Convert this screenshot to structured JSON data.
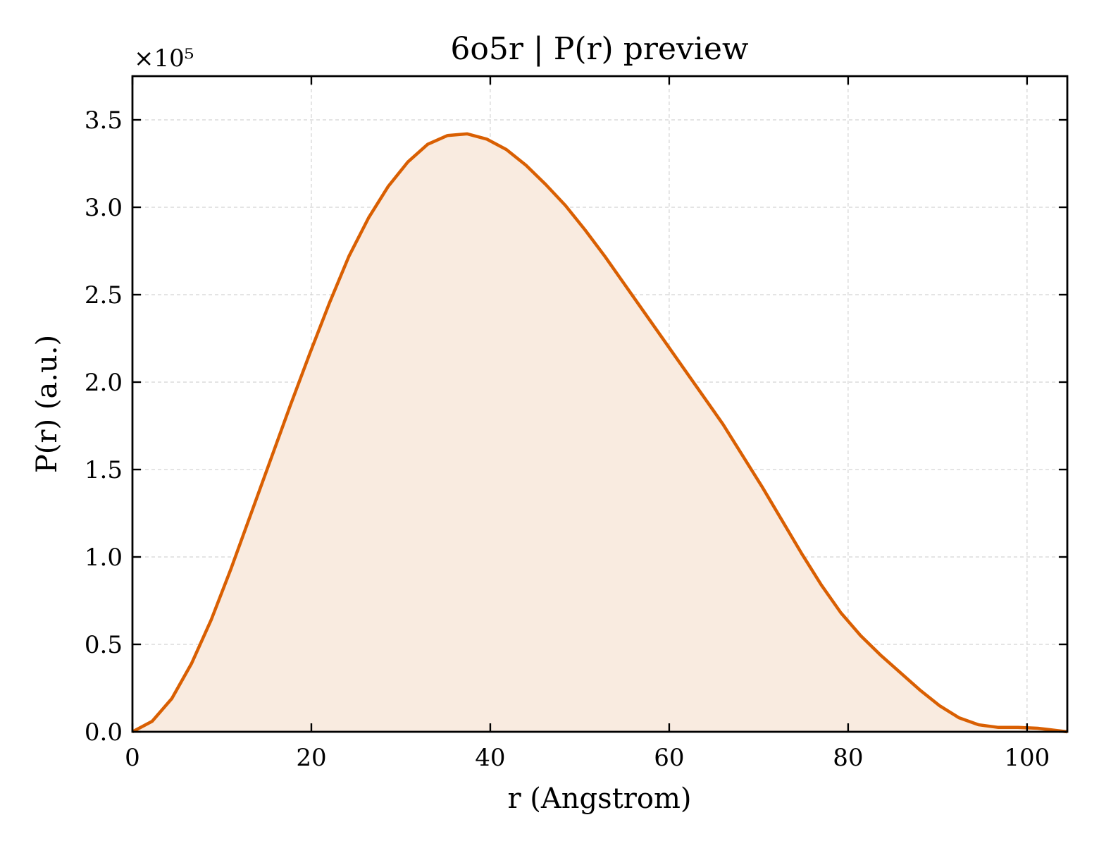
{
  "chart_data": {
    "type": "area",
    "title": "6o5r | P(r) preview",
    "xlabel": "r (Angstrom)",
    "ylabel": "P(r) (a.u.)",
    "y_offset_label": "×10⁵",
    "xlim": [
      0,
      104.5
    ],
    "ylim": [
      0,
      3.75
    ],
    "xticks": [
      0,
      20,
      40,
      60,
      80,
      100
    ],
    "yticks": [
      0.0,
      0.5,
      1.0,
      1.5,
      2.0,
      2.5,
      3.0,
      3.5
    ],
    "xtick_labels": [
      "0",
      "20",
      "40",
      "60",
      "80",
      "100"
    ],
    "ytick_labels": [
      "0.0",
      "0.5",
      "1.0",
      "1.5",
      "2.0",
      "2.5",
      "3.0",
      "3.5"
    ],
    "grid": true,
    "colors": {
      "line": "#d95f02",
      "fill": "#f9ebe0"
    },
    "series": [
      {
        "x": [
          0,
          2.2,
          4.4,
          6.6,
          8.8,
          11.0,
          13.2,
          15.4,
          17.6,
          19.8,
          22.0,
          24.2,
          26.4,
          28.6,
          30.8,
          33.0,
          35.2,
          37.4,
          39.6,
          41.8,
          44.0,
          46.2,
          48.4,
          50.6,
          52.8,
          55.0,
          57.2,
          59.4,
          61.6,
          63.8,
          66.0,
          68.2,
          70.4,
          72.6,
          74.8,
          77.0,
          79.2,
          81.4,
          83.6,
          85.8,
          88.0,
          90.2,
          92.4,
          94.6,
          96.8,
          99.0,
          101.2,
          104.5
        ],
        "values": [
          0.0,
          0.06,
          0.19,
          0.39,
          0.64,
          0.93,
          1.24,
          1.55,
          1.86,
          2.16,
          2.45,
          2.72,
          2.94,
          3.12,
          3.26,
          3.36,
          3.41,
          3.42,
          3.39,
          3.33,
          3.24,
          3.13,
          3.01,
          2.87,
          2.72,
          2.56,
          2.4,
          2.24,
          2.08,
          1.92,
          1.76,
          1.58,
          1.4,
          1.21,
          1.02,
          0.84,
          0.68,
          0.55,
          0.44,
          0.34,
          0.24,
          0.15,
          0.08,
          0.04,
          0.025,
          0.025,
          0.02,
          0.0
        ]
      }
    ]
  }
}
